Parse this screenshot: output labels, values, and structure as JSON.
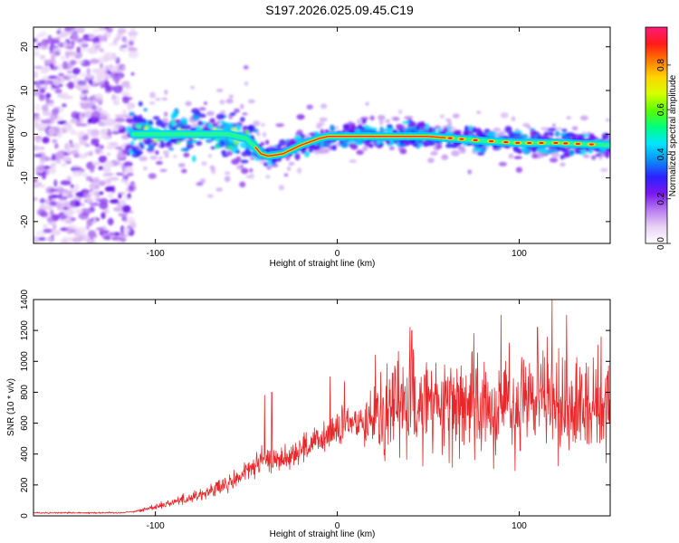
{
  "chart_data": [
    {
      "type": "heatmap",
      "title": "S197.2026.025.09.45.C19",
      "xlabel": "Height of straight line (km)",
      "ylabel": "Frequency (Hz)",
      "xlim": [
        -167,
        150
      ],
      "ylim": [
        -25,
        24.5
      ],
      "xticks": [
        -100,
        0,
        100
      ],
      "xtick_labels": [
        "-100",
        "0",
        "100"
      ],
      "yticks": [
        -20,
        -10,
        0,
        10,
        20
      ],
      "ytick_labels": [
        "-20",
        "-10",
        "0",
        "10",
        "20"
      ],
      "colorbar": {
        "label": "Normalized spectral amplitude",
        "range": [
          0,
          0.97
        ],
        "ticks": [
          0,
          0.2,
          0.4,
          0.6,
          0.8
        ],
        "tick_labels": [
          "0.0",
          "0.2",
          "0.4",
          "0.6",
          "0.8"
        ],
        "colors": [
          "#ffffff",
          "#e9d2f6",
          "#b87cf0",
          "#7a17f2",
          "#2a22ff",
          "#0a8ff5",
          "#00e6ff",
          "#00ff7f",
          "#5cff00",
          "#d6ff00",
          "#ffd400",
          "#ff7a00",
          "#ff1a1a",
          "#ff1a7a"
        ]
      },
      "ridge": {
        "x": [
          -115,
          -100,
          -80,
          -60,
          -50,
          -45,
          -42,
          -38,
          -30,
          -20,
          -10,
          -5,
          0,
          20,
          50,
          80,
          100,
          120,
          150
        ],
        "freq": [
          0,
          0,
          0,
          0,
          -1,
          -3,
          -4.5,
          -5,
          -4.5,
          -2.5,
          -1,
          -0.5,
          -0.5,
          -0.5,
          -0.5,
          -1.5,
          -2,
          -2,
          -2.5
        ]
      }
    },
    {
      "type": "line",
      "title": "",
      "xlabel": "Height of straight line (km)",
      "ylabel": "SNR (10 * v/v)",
      "xlim": [
        -167,
        150
      ],
      "ylim": [
        0,
        1400
      ],
      "xticks": [
        -100,
        0,
        100
      ],
      "xtick_labels": [
        "-100",
        "0",
        "100"
      ],
      "yticks": [
        0,
        200,
        400,
        600,
        800,
        1000,
        1200,
        1400
      ],
      "ytick_labels": [
        "0",
        "200",
        "400",
        "600",
        "800",
        "1000",
        "1200",
        "1400"
      ],
      "series": [
        {
          "name": "SNR",
          "color": "#e8282a",
          "envelope": {
            "x": [
              -167,
              -120,
              -110,
              -100,
              -80,
              -60,
              -45,
              -40,
              -30,
              -20,
              -10,
              0,
              10,
              20,
              30,
              40,
              60,
              80,
              100,
              115,
              130,
              150
            ],
            "y": [
              20,
              20,
              30,
              60,
              120,
              200,
              330,
              360,
              370,
              430,
              480,
              560,
              600,
              660,
              700,
              720,
              740,
              730,
              720,
              740,
              700,
              700
            ]
          },
          "spikes": [
            {
              "x": -40,
              "y": 780
            },
            {
              "x": -36,
              "y": 800
            },
            {
              "x": -37,
              "y": 420
            },
            {
              "x": -4,
              "y": 900
            },
            {
              "x": 4,
              "y": 870
            },
            {
              "x": 21,
              "y": 1040
            },
            {
              "x": 40,
              "y": 1220
            },
            {
              "x": 41,
              "y": 1200
            },
            {
              "x": 75,
              "y": 1180
            },
            {
              "x": 90,
              "y": 1300
            },
            {
              "x": 110,
              "y": 1220
            },
            {
              "x": 118,
              "y": 1400
            },
            {
              "x": 126,
              "y": 1300
            },
            {
              "x": 145,
              "y": 1160
            }
          ]
        }
      ]
    }
  ]
}
